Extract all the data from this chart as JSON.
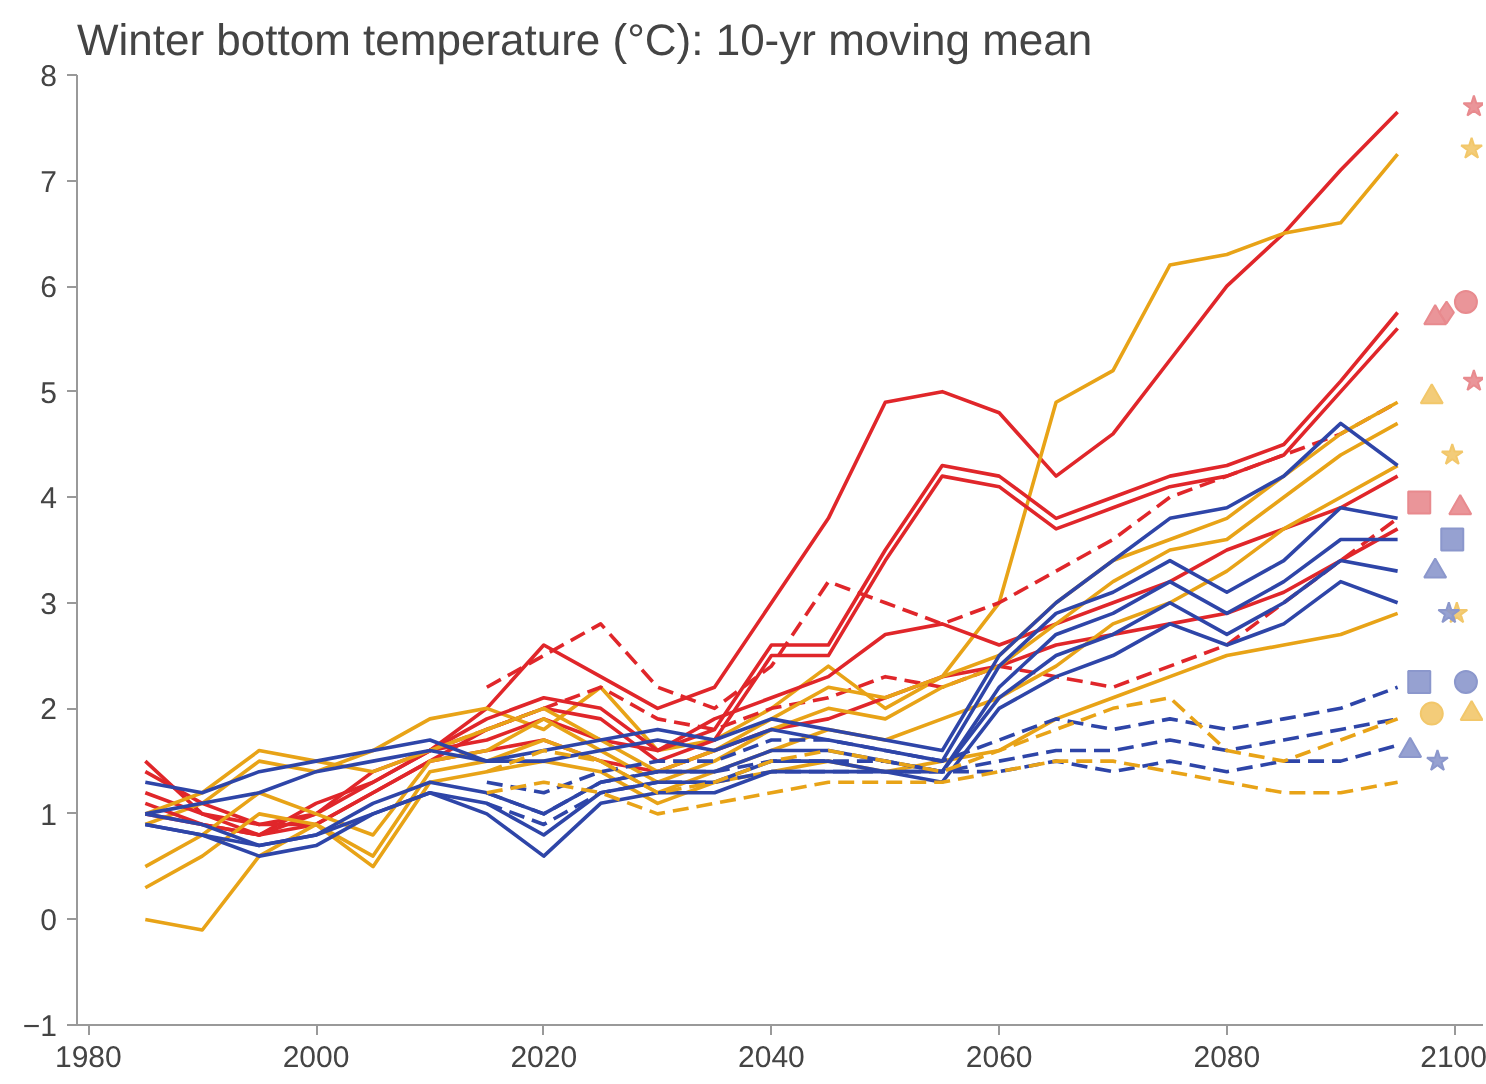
{
  "chart_data": {
    "type": "line",
    "title": "Winter bottom temperature (°C): 10-yr moving mean",
    "x": [
      1985,
      1990,
      1995,
      2000,
      2005,
      2010,
      2015,
      2020,
      2025,
      2030,
      2035,
      2040,
      2045,
      2050,
      2055,
      2060,
      2065,
      2070,
      2075,
      2080,
      2085,
      2090,
      2095
    ],
    "xlim": [
      1979,
      2102.5
    ],
    "xticks": [
      1980,
      2000,
      2020,
      2040,
      2060,
      2080,
      2100
    ],
    "ylim": [
      -1,
      8
    ],
    "yticks": [
      -1,
      0,
      1,
      2,
      3,
      4,
      5,
      6,
      7,
      8
    ],
    "grid": false,
    "marker": "none",
    "series": [
      {
        "color": "#e0262a",
        "line_style": "solid",
        "values": [
          1.5,
          1.0,
          0.8,
          1.1,
          1.3,
          1.6,
          2.0,
          2.6,
          2.3,
          2.0,
          2.2,
          3.0,
          3.8,
          4.9,
          5.0,
          4.8,
          4.2,
          4.6,
          5.3,
          6.0,
          6.5,
          7.1,
          7.65
        ]
      },
      {
        "color": "#e8a317",
        "line_style": "solid",
        "values": [
          0.9,
          1.1,
          1.5,
          1.4,
          1.6,
          1.9,
          2.0,
          1.8,
          2.2,
          1.6,
          1.7,
          2.0,
          2.4,
          2.0,
          2.3,
          3.0,
          4.9,
          5.2,
          6.2,
          6.3,
          6.5,
          6.6,
          7.25
        ]
      },
      {
        "color": "#e0262a",
        "line_style": "solid",
        "values": [
          1.0,
          0.9,
          0.8,
          1.0,
          1.3,
          1.6,
          1.9,
          2.1,
          2.0,
          1.6,
          1.8,
          2.6,
          2.6,
          3.5,
          4.3,
          4.2,
          3.8,
          4.0,
          4.2,
          4.3,
          4.5,
          5.1,
          5.75
        ]
      },
      {
        "color": "#e0262a",
        "line_style": "solid",
        "values": [
          1.1,
          0.9,
          0.8,
          0.9,
          1.2,
          1.5,
          1.8,
          2.0,
          1.9,
          1.5,
          1.7,
          2.5,
          2.5,
          3.4,
          4.2,
          4.1,
          3.7,
          3.9,
          4.1,
          4.2,
          4.4,
          5.0,
          5.6
        ]
      },
      {
        "color": "#e0262a",
        "line_style": "dashed",
        "values": [
          null,
          null,
          null,
          null,
          null,
          null,
          2.2,
          2.5,
          2.8,
          2.2,
          2.0,
          2.4,
          3.2,
          3.0,
          2.8,
          3.0,
          3.3,
          3.6,
          4.0,
          4.2,
          4.4,
          4.6,
          4.9
        ]
      },
      {
        "color": "#e0262a",
        "line_style": "solid",
        "values": [
          1.4,
          1.1,
          0.9,
          1.0,
          1.4,
          1.6,
          1.7,
          1.9,
          1.7,
          1.6,
          1.9,
          2.1,
          2.3,
          2.7,
          2.8,
          2.6,
          2.8,
          3.0,
          3.2,
          3.5,
          3.7,
          3.9,
          4.2
        ]
      },
      {
        "color": "#e0262a",
        "line_style": "solid",
        "values": [
          1.2,
          1.0,
          0.9,
          0.9,
          1.2,
          1.5,
          1.6,
          1.7,
          1.5,
          1.4,
          1.6,
          1.8,
          1.9,
          2.1,
          2.3,
          2.4,
          2.6,
          2.7,
          2.8,
          2.9,
          3.1,
          3.4,
          3.7
        ]
      },
      {
        "color": "#e0262a",
        "line_style": "dashed",
        "values": [
          null,
          null,
          null,
          null,
          null,
          1.6,
          1.8,
          2.0,
          2.2,
          1.9,
          1.8,
          2.0,
          2.1,
          2.3,
          2.2,
          2.4,
          2.3,
          2.2,
          2.4,
          2.6,
          3.0,
          3.4,
          3.8
        ]
      },
      {
        "color": "#e8a317",
        "line_style": "solid",
        "values": [
          1.0,
          1.2,
          1.6,
          1.5,
          1.4,
          1.6,
          1.8,
          2.0,
          1.7,
          1.4,
          1.6,
          1.9,
          2.2,
          2.1,
          2.3,
          2.5,
          3.0,
          3.4,
          3.6,
          3.8,
          4.2,
          4.6,
          4.9
        ]
      },
      {
        "color": "#e8a317",
        "line_style": "solid",
        "values": [
          0.5,
          0.8,
          1.2,
          1.0,
          0.8,
          1.5,
          1.6,
          1.9,
          1.6,
          1.3,
          1.5,
          1.8,
          2.0,
          1.9,
          2.2,
          2.4,
          2.8,
          3.2,
          3.5,
          3.6,
          4.0,
          4.4,
          4.7
        ]
      },
      {
        "color": "#e8a317",
        "line_style": "solid",
        "values": [
          0.3,
          0.6,
          1.0,
          0.9,
          0.6,
          1.4,
          1.5,
          1.7,
          1.5,
          1.2,
          1.4,
          1.6,
          1.8,
          1.7,
          1.9,
          2.1,
          2.4,
          2.8,
          3.0,
          3.3,
          3.7,
          4.0,
          4.3
        ]
      },
      {
        "color": "#e8a317",
        "line_style": "solid",
        "values": [
          0.0,
          -0.1,
          0.6,
          0.9,
          0.5,
          1.3,
          1.4,
          1.5,
          1.4,
          1.1,
          1.3,
          1.4,
          1.5,
          1.4,
          1.5,
          1.6,
          1.9,
          2.1,
          2.3,
          2.5,
          2.6,
          2.7,
          2.9
        ]
      },
      {
        "color": "#2e45a8",
        "line_style": "solid",
        "values": [
          1.3,
          1.2,
          1.4,
          1.5,
          1.6,
          1.7,
          1.5,
          1.6,
          1.7,
          1.8,
          1.7,
          1.9,
          1.8,
          1.7,
          1.6,
          2.5,
          3.0,
          3.4,
          3.8,
          3.9,
          4.2,
          4.7,
          4.3
        ]
      },
      {
        "color": "#2e45a8",
        "line_style": "solid",
        "values": [
          1.0,
          1.1,
          1.2,
          1.4,
          1.5,
          1.6,
          1.5,
          1.5,
          1.6,
          1.7,
          1.6,
          1.8,
          1.7,
          1.6,
          1.5,
          2.4,
          2.9,
          3.1,
          3.4,
          3.1,
          3.4,
          3.9,
          3.8
        ]
      },
      {
        "color": "#2e45a8",
        "line_style": "solid",
        "values": [
          1.0,
          0.9,
          0.7,
          0.8,
          1.1,
          1.3,
          1.2,
          1.0,
          1.3,
          1.4,
          1.4,
          1.6,
          1.6,
          1.5,
          1.4,
          2.2,
          2.7,
          2.9,
          3.2,
          2.9,
          3.2,
          3.6,
          3.6
        ]
      },
      {
        "color": "#2e45a8",
        "line_style": "solid",
        "values": [
          0.9,
          0.8,
          0.7,
          0.8,
          1.0,
          1.2,
          1.1,
          0.8,
          1.2,
          1.3,
          1.3,
          1.5,
          1.5,
          1.4,
          1.4,
          2.1,
          2.5,
          2.7,
          3.0,
          2.7,
          3.0,
          3.4,
          3.3
        ]
      },
      {
        "color": "#2e45a8",
        "line_style": "solid",
        "values": [
          0.9,
          0.8,
          0.6,
          0.7,
          1.0,
          1.2,
          1.0,
          0.6,
          1.1,
          1.2,
          1.2,
          1.4,
          1.4,
          1.4,
          1.3,
          2.0,
          2.3,
          2.5,
          2.8,
          2.6,
          2.8,
          3.2,
          3.0
        ]
      },
      {
        "color": "#2e45a8",
        "line_style": "dashed",
        "values": [
          null,
          null,
          null,
          null,
          null,
          null,
          1.3,
          1.2,
          1.4,
          1.5,
          1.5,
          1.7,
          1.7,
          1.6,
          1.5,
          1.7,
          1.9,
          1.8,
          1.9,
          1.8,
          1.9,
          2.0,
          2.2
        ]
      },
      {
        "color": "#2e45a8",
        "line_style": "dashed",
        "values": [
          null,
          null,
          null,
          null,
          null,
          null,
          1.2,
          1.0,
          1.3,
          1.4,
          1.4,
          1.5,
          1.5,
          1.5,
          1.4,
          1.5,
          1.6,
          1.6,
          1.7,
          1.6,
          1.7,
          1.8,
          1.9
        ]
      },
      {
        "color": "#2e45a8",
        "line_style": "dashed",
        "values": [
          null,
          null,
          null,
          null,
          null,
          null,
          1.1,
          0.9,
          1.2,
          1.3,
          1.3,
          1.4,
          1.4,
          1.4,
          1.4,
          1.4,
          1.5,
          1.4,
          1.5,
          1.4,
          1.5,
          1.5,
          1.65
        ]
      },
      {
        "color": "#e8a317",
        "line_style": "dashed",
        "values": [
          null,
          null,
          null,
          null,
          null,
          null,
          1.4,
          1.6,
          1.5,
          1.2,
          1.3,
          1.5,
          1.6,
          1.5,
          1.4,
          1.6,
          1.8,
          2.0,
          2.1,
          1.6,
          1.5,
          1.7,
          1.9
        ]
      },
      {
        "color": "#e8a317",
        "line_style": "dashed",
        "values": [
          null,
          null,
          null,
          null,
          null,
          null,
          1.2,
          1.3,
          1.2,
          1.0,
          1.1,
          1.2,
          1.3,
          1.3,
          1.3,
          1.4,
          1.5,
          1.5,
          1.4,
          1.3,
          1.2,
          1.2,
          1.3
        ]
      },
      {
        "type": "scatter",
        "marker": "star",
        "color": "#e88a8e",
        "x": [
          2101.7,
          2101.7
        ],
        "values": [
          7.7,
          5.1
        ]
      },
      {
        "type": "scatter",
        "marker": "star",
        "color": "#f2c76a",
        "x": [
          2101.5,
          2099.8,
          2100.2
        ],
        "values": [
          7.3,
          4.4,
          2.9
        ]
      },
      {
        "type": "scatter",
        "marker": "circle",
        "color": "#e88a8e",
        "x": [
          2101.0
        ],
        "values": [
          5.85
        ]
      },
      {
        "type": "scatter",
        "marker": "diamond",
        "color": "#e88a8e",
        "x": [
          2099.3
        ],
        "values": [
          5.75
        ]
      },
      {
        "type": "scatter",
        "marker": "triangle",
        "color": "#e88a8e",
        "x": [
          2098.3,
          2100.5
        ],
        "values": [
          5.7,
          3.9
        ]
      },
      {
        "type": "scatter",
        "marker": "triangle",
        "color": "#f2c76a",
        "x": [
          2098.0,
          2101.5
        ],
        "values": [
          4.95,
          1.95
        ]
      },
      {
        "type": "scatter",
        "marker": "square",
        "color": "#e88a8e",
        "x": [
          2096.9
        ],
        "values": [
          3.95
        ]
      },
      {
        "type": "scatter",
        "marker": "square",
        "color": "#8b97cc",
        "x": [
          2099.8,
          2096.9
        ],
        "values": [
          3.6,
          2.25
        ]
      },
      {
        "type": "scatter",
        "marker": "triangle",
        "color": "#8b97cc",
        "x": [
          2098.3,
          2096.1
        ],
        "values": [
          3.3,
          1.6
        ]
      },
      {
        "type": "scatter",
        "marker": "star",
        "color": "#8b97cc",
        "x": [
          2099.5,
          2098.5
        ],
        "values": [
          2.9,
          1.5
        ]
      },
      {
        "type": "scatter",
        "marker": "circle",
        "color": "#8b97cc",
        "x": [
          2101.0
        ],
        "values": [
          2.25
        ]
      },
      {
        "type": "scatter",
        "marker": "circle",
        "color": "#f2c76a",
        "x": [
          2098.0
        ],
        "values": [
          1.95
        ]
      }
    ]
  }
}
